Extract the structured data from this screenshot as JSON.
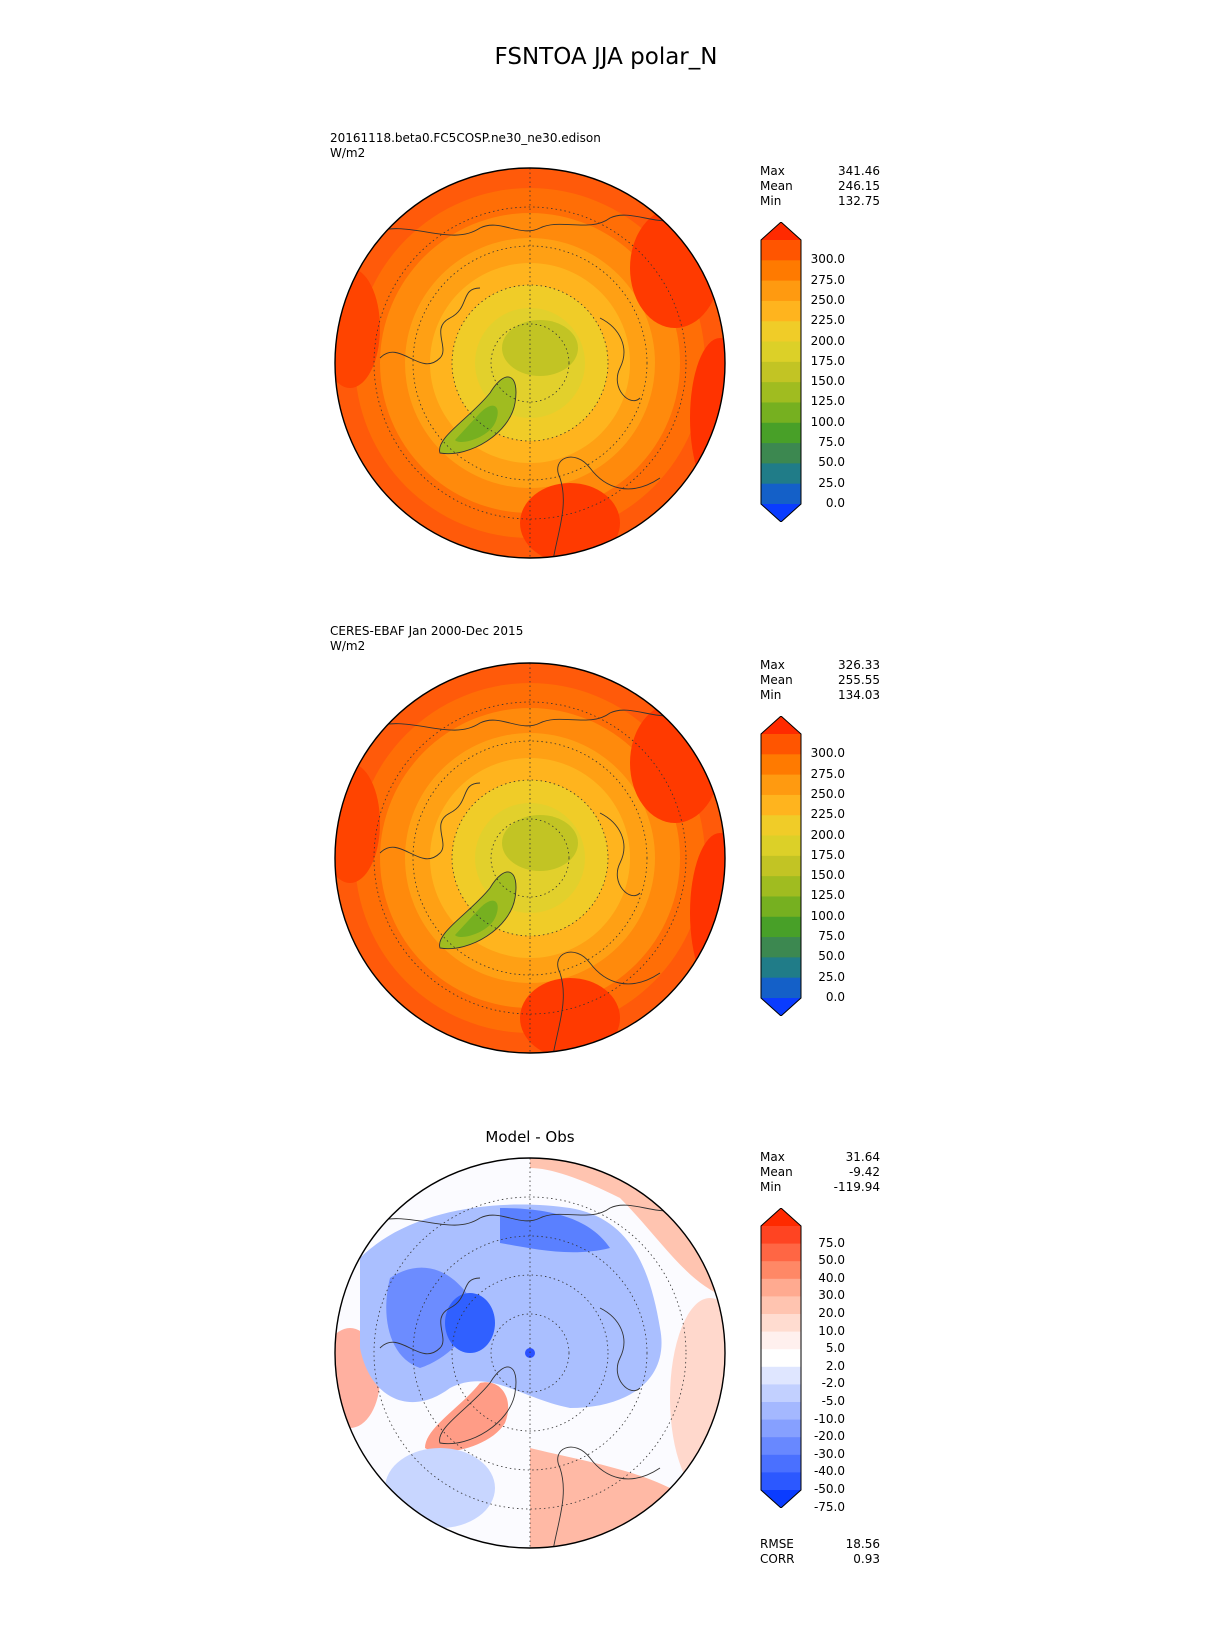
{
  "title": "FSNTOA JJA polar_N",
  "panels": [
    {
      "label_line1": "20161118.beta0.FC5COSP.ne30_ne30.edison",
      "label_line2": "W/m2",
      "title": "",
      "stats": {
        "max_label": "Max",
        "max": "341.46",
        "mean_label": "Mean",
        "mean": "246.15",
        "min_label": "Min",
        "min": "132.75"
      },
      "colorbar": {
        "ticks": [
          "300.0",
          "275.0",
          "250.0",
          "225.0",
          "200.0",
          "175.0",
          "150.0",
          "125.0",
          "100.0",
          "75.0",
          "50.0",
          "25.0",
          "0.0"
        ],
        "colors": [
          "#ff2a00",
          "#ff5500",
          "#ff7a00",
          "#ff9a10",
          "#ffb41e",
          "#f0cc28",
          "#dcd028",
          "#c2c424",
          "#a0bc20",
          "#76b020",
          "#48a028",
          "#3c8850",
          "#207c88",
          "#1460c8",
          "#0a3cff"
        ]
      }
    },
    {
      "label_line1": "CERES-EBAF Jan 2000-Dec 2015",
      "label_line2": "W/m2",
      "title": "",
      "stats": {
        "max_label": "Max",
        "max": "326.33",
        "mean_label": "Mean",
        "mean": "255.55",
        "min_label": "Min",
        "min": "134.03"
      },
      "colorbar": {
        "ticks": [
          "300.0",
          "275.0",
          "250.0",
          "225.0",
          "200.0",
          "175.0",
          "150.0",
          "125.0",
          "100.0",
          "75.0",
          "50.0",
          "25.0",
          "0.0"
        ],
        "colors": [
          "#ff2a00",
          "#ff5500",
          "#ff7a00",
          "#ff9a10",
          "#ffb41e",
          "#f0cc28",
          "#dcd028",
          "#c2c424",
          "#a0bc20",
          "#76b020",
          "#48a028",
          "#3c8850",
          "#207c88",
          "#1460c8",
          "#0a3cff"
        ]
      }
    },
    {
      "label_line1": "",
      "label_line2": "",
      "title": "Model - Obs",
      "stats": {
        "max_label": "Max",
        "max": "31.64",
        "mean_label": "Mean",
        "mean": "-9.42",
        "min_label": "Min",
        "min": "-119.94"
      },
      "colorbar": {
        "ticks": [
          "75.0",
          "50.0",
          "40.0",
          "30.0",
          "20.0",
          "10.0",
          "5.0",
          "2.0",
          "-2.0",
          "-5.0",
          "-10.0",
          "-20.0",
          "-30.0",
          "-40.0",
          "-50.0",
          "-75.0"
        ],
        "colors": [
          "#ff2a00",
          "#ff4422",
          "#ff6644",
          "#ff8866",
          "#ffaa90",
          "#ffc4b0",
          "#ffdcd0",
          "#fff0ee",
          "#ffffff",
          "#dfe6ff",
          "#c2d0ff",
          "#a4b8ff",
          "#86a0ff",
          "#6888ff",
          "#4a70ff",
          "#2c58ff",
          "#0a3cff"
        ]
      },
      "footer": {
        "rmse_label": "RMSE",
        "rmse": "18.56",
        "corr_label": "CORR",
        "corr": "0.93"
      }
    }
  ]
}
